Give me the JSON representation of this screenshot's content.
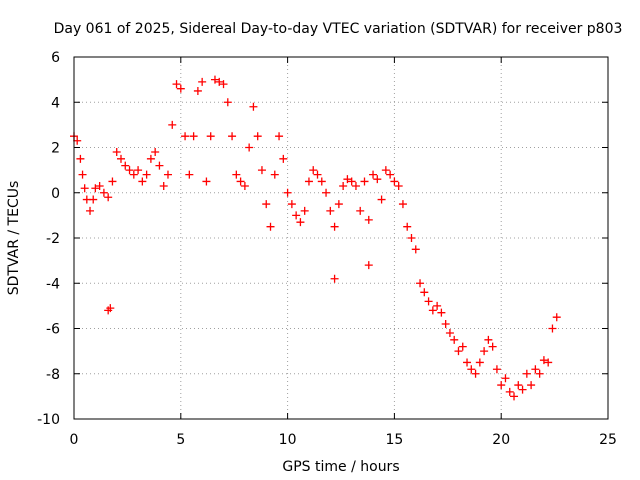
{
  "chart_data": {
    "type": "scatter",
    "title": "Day 061 of 2025, Sidereal Day-to-day VTEC variation (SDTVAR) for receiver p803",
    "xlabel": "GPS time / hours",
    "ylabel": "SDTVAR / TECUs",
    "xlim": [
      0,
      25
    ],
    "ylim": [
      -10,
      6
    ],
    "xticks": [
      0,
      5,
      10,
      15,
      20,
      25
    ],
    "yticks": [
      6,
      4,
      2,
      0,
      -2,
      -4,
      -6,
      -8,
      -10
    ],
    "grid": true,
    "marker": "+",
    "color": "#ff0000",
    "series": [
      {
        "name": "SDTVAR",
        "x": [
          0.0,
          0.15,
          0.3,
          0.4,
          0.5,
          0.6,
          0.75,
          0.9,
          1.0,
          1.2,
          1.4,
          1.6,
          1.8,
          2.0,
          2.2,
          2.4,
          2.6,
          2.8,
          3.0,
          3.2,
          3.4,
          3.6,
          3.8,
          4.0,
          4.2,
          4.4,
          4.6,
          4.8,
          5.0,
          5.2,
          5.4,
          5.6,
          5.8,
          6.0,
          6.2,
          6.4,
          6.6,
          6.8,
          7.0,
          7.2,
          7.4,
          7.6,
          7.8,
          8.0,
          8.2,
          8.4,
          8.6,
          8.8,
          9.0,
          9.2,
          9.4,
          9.6,
          9.8,
          10.0,
          10.2,
          10.4,
          10.6,
          10.8,
          11.0,
          11.2,
          11.4,
          11.6,
          11.8,
          12.0,
          12.2,
          12.4,
          12.6,
          12.8,
          13.0,
          13.2,
          13.4,
          13.6,
          13.8,
          14.0,
          14.2,
          14.4,
          14.6,
          14.8,
          15.0,
          15.2,
          15.4,
          15.6,
          15.8,
          16.0,
          16.2,
          16.4,
          16.6,
          16.8,
          17.0,
          17.2,
          17.4,
          17.6,
          17.8,
          18.0,
          18.2,
          18.4,
          18.6,
          18.8,
          19.0,
          19.2,
          19.4,
          19.6,
          19.8,
          20.0,
          20.2,
          20.4,
          20.6,
          20.8,
          21.0,
          21.2,
          21.4,
          21.6,
          21.8,
          22.0,
          22.2,
          22.4,
          22.6,
          1.6,
          1.7,
          12.2,
          13.8
        ],
        "y": [
          2.5,
          2.3,
          1.5,
          0.8,
          0.2,
          -0.3,
          -0.8,
          -0.3,
          0.2,
          0.3,
          0.0,
          -0.2,
          0.5,
          1.8,
          1.5,
          1.2,
          1.0,
          0.8,
          1.0,
          0.5,
          0.8,
          1.5,
          1.8,
          1.2,
          0.3,
          0.8,
          3.0,
          4.8,
          4.6,
          2.5,
          0.8,
          2.5,
          4.5,
          4.9,
          0.5,
          2.5,
          5.0,
          4.9,
          4.8,
          4.0,
          2.5,
          0.8,
          0.5,
          0.3,
          2.0,
          3.8,
          2.5,
          1.0,
          -0.5,
          -1.5,
          0.8,
          2.5,
          1.5,
          0.0,
          -0.5,
          -1.0,
          -1.3,
          -0.8,
          0.5,
          1.0,
          0.8,
          0.5,
          0.0,
          -0.8,
          -1.5,
          -0.5,
          0.3,
          0.6,
          0.5,
          0.3,
          -0.8,
          0.5,
          -1.2,
          0.8,
          0.6,
          -0.3,
          1.0,
          0.8,
          0.5,
          0.3,
          -0.5,
          -1.5,
          -2.0,
          -2.5,
          -4.0,
          -4.4,
          -4.8,
          -5.2,
          -5.0,
          -5.3,
          -5.8,
          -6.2,
          -6.5,
          -7.0,
          -6.8,
          -7.5,
          -7.8,
          -8.0,
          -7.5,
          -7.0,
          -6.5,
          -6.8,
          -7.8,
          -8.5,
          -8.2,
          -8.8,
          -9.0,
          -8.5,
          -8.7,
          -8.0,
          -8.5,
          -7.8,
          -8.0,
          -7.4,
          -7.5,
          -6.0,
          -5.5,
          -5.2,
          -5.1,
          -3.8,
          -3.2
        ]
      }
    ]
  }
}
